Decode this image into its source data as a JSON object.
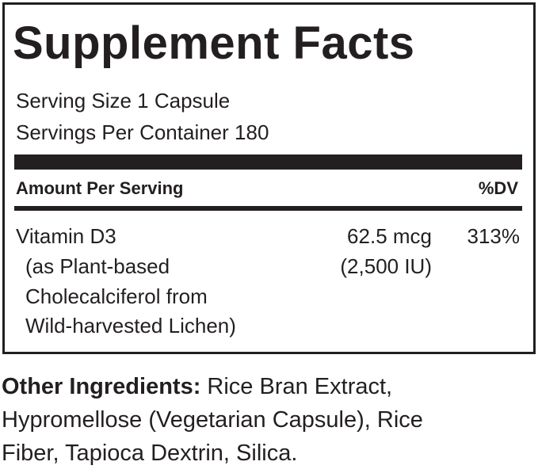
{
  "title": "Supplement Facts",
  "serving_size": "Serving Size 1 Capsule",
  "servings_per_container": "Servings Per Container 180",
  "header": {
    "amount": "Amount Per Serving",
    "dv": "%DV"
  },
  "nutrients": [
    {
      "name": "Vitamin D3",
      "source_lines": [
        "(as Plant-based",
        "Cholecalciferol from",
        "Wild-harvested Lichen)"
      ],
      "amount": "62.5 mcg",
      "amount_alt": "(2,500 IU)",
      "dv": "313%"
    }
  ],
  "other_ingredients": {
    "label": "Other Ingredients:",
    "lines": [
      "Rice Bran Extract,",
      "Hypromellose (Vegetarian Capsule), Rice",
      "Fiber, Tapioca Dextrin, Silica."
    ]
  }
}
